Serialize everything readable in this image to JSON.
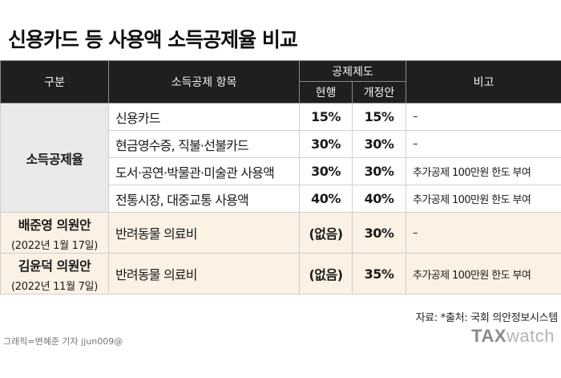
{
  "title": "신용카드 등 사용액 소득공제율 비교",
  "header": {
    "col_category": "구분",
    "col_item": "소득공제 항목",
    "col_system": "공제제도",
    "col_current": "현행",
    "col_revised": "개정안",
    "col_note": "비고"
  },
  "groups": [
    {
      "name": "소득공제율",
      "rows": [
        {
          "item": "신용카드",
          "current": "15%",
          "revised": "15%",
          "note": "–"
        },
        {
          "item": "현금영수증, 직불·선불카드",
          "current": "30%",
          "revised": "30%",
          "note": "–"
        },
        {
          "item": "도서·공연·박물관·미술관 사용액",
          "current": "30%",
          "revised": "30%",
          "note": "추가공제 100만원 한도 부여"
        },
        {
          "item": "전통시장, 대중교통 사용액",
          "current": "40%",
          "revised": "40%",
          "note": "추가공제 100만원 한도 부여"
        }
      ]
    },
    {
      "name": "배준영 의원안",
      "date": "(2022년 1월 17일)",
      "rows": [
        {
          "item": "반려동물 의료비",
          "current": "(없음)",
          "revised": "30%",
          "note": "–"
        }
      ]
    },
    {
      "name": "김윤덕 의원안",
      "date": "(2022년 11월 7일)",
      "rows": [
        {
          "item": "반려동물 의료비",
          "current": "(없음)",
          "revised": "35%",
          "note": "추가공제 100만원 한도 부여"
        }
      ]
    }
  ],
  "source": "자료: *출처: 국회 의안정보시스템",
  "credit": "그래픽=변혜준 기자 jjun009@",
  "logo": {
    "part1": "TAX",
    "part2": "watch"
  },
  "colors": {
    "header_bg": "#1f1f1f",
    "gray_cell": "#e9e9e9",
    "peach_cell": "#fbf1e4",
    "logo_gray": "#8a8a8a"
  }
}
